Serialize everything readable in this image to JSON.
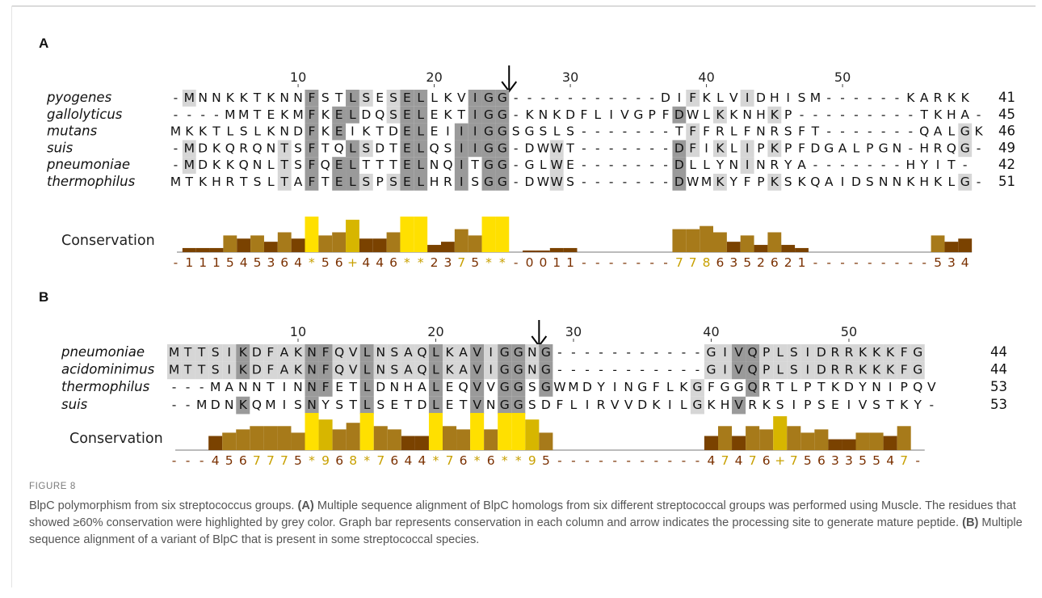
{
  "panels": [
    {
      "label": "A",
      "ticks": [
        "10",
        "20",
        "30",
        "40",
        "50"
      ],
      "sequences": [
        {
          "name": "pyogenes",
          "seq": "-MNNKKTKNNFSTLSESELLKVIGG-----------DIFKLVIDHISM------KARKK",
          "length": "41"
        },
        {
          "name": "gallolyticus",
          "seq": "----MMTEKMFKELDQSELEKTIGG-KNKDFLIVGPFDWLKKNHKP---------TKHA-",
          "length": "45"
        },
        {
          "name": "mutans",
          "seq": "MKKTLSLKNDFKEIKTDELEIIIGGSGSLS-------TFFRLFNRSFT-------QALGK",
          "length": "46"
        },
        {
          "name": "suis",
          "seq": "-MDKQRQNTSFTQLSDTELQSIIGG-DWWT-------DFIKLIPKPFDGALPGN-HRQG-",
          "length": "49"
        },
        {
          "name": "pneumoniae",
          "seq": "-MDKKQNLTSFQELTTTELNQITGG-GLWE-------DLLYNINRYA-------HYIT-",
          "length": "42"
        },
        {
          "name": "thermophilus",
          "seq": "MTKHRTSLTAFTELSPSELHRISGG-DWWS-------DWMKYFPKSKQAIDSNNKHKLG-",
          "length": "51"
        }
      ],
      "conservation_label": "Conservation",
      "conservation": "-111545364*56+446**2375**-0011-------7786352621---------5345-"
    },
    {
      "label": "B",
      "ticks": [
        "10",
        "20",
        "30",
        "40",
        "50"
      ],
      "sequences": [
        {
          "name": "pneumoniae",
          "seq": "MTTSIKDFAKNFQVLNSAQLKAVIGGNG-----------GIVQPLSIDRRKKKFG",
          "length": "44"
        },
        {
          "name": "acidominimus",
          "seq": "MTTSIKDFAKNFQVLNSAQLKAVIGGNG-----------GIVQPLSIDRRKKKFG",
          "length": "44"
        },
        {
          "name": "thermophilus",
          "seq": "---MANNTINNFETLDNHALEQVVGGSGWMDYINGFLKGFGGQRTLPTKDYNIPQV",
          "length": "53"
        },
        {
          "name": "suis",
          "seq": "--MDNKQMISNYSTLSETDLETVNGGSDFLIRVVDKILGKHVRKSIPSEIVSTKY-",
          "length": "53"
        }
      ],
      "conservation_label": "Conservation",
      "conservation": "---4567775*968*7644*76*6**95-----------47476+756335547-"
    }
  ],
  "figure_label": "FIGURE 8",
  "caption": [
    {
      "text": "BlpC polymorphism from six streptococcus groups. ",
      "bold": false
    },
    {
      "text": "(A)",
      "bold": true
    },
    {
      "text": " Multiple sequence alignment of BlpC homologs from six different streptococcal groups was performed using Muscle. The residues that showed ≥60% conservation were highlighted by grey color. Graph bar represents conservation in each column and arrow indicates the processing site to generate mature peptide. ",
      "bold": false
    },
    {
      "text": "(B)",
      "bold": true
    },
    {
      "text": " Multiple sequence alignment of a variant of BlpC that is present in some streptococcal species.",
      "bold": false
    }
  ],
  "colors": {
    "highlight_strong": "#9a9a9a",
    "highlight_light": "#d6d6d6",
    "bar_full": "#ffe000",
    "bar_high": "#d7b600",
    "bar_mid": "#a77a1a",
    "bar_low": "#7a4200",
    "score_dark": "#7a3000",
    "score_light": "#c8a000"
  }
}
